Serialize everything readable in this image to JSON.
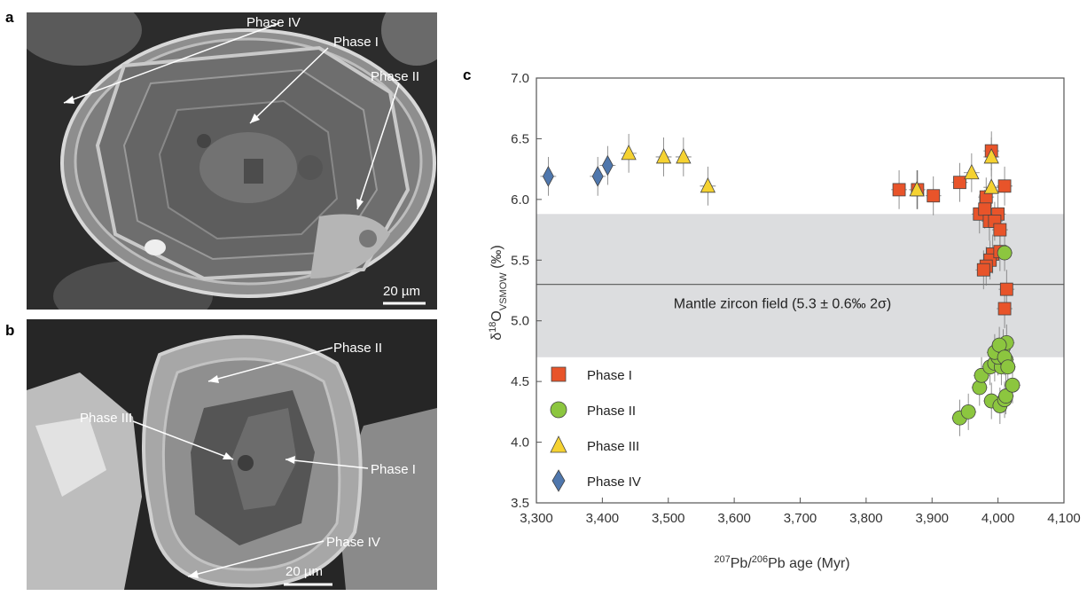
{
  "panels": {
    "a": {
      "letter": "a",
      "labels": {
        "phase_iv": "Phase IV",
        "phase_i": "Phase I",
        "phase_ii": "Phase II"
      },
      "scale": "20 µm"
    },
    "b": {
      "letter": "b",
      "labels": {
        "phase_ii": "Phase II",
        "phase_iii": "Phase III",
        "phase_i": "Phase I",
        "phase_iv": "Phase IV"
      },
      "scale": "20 µm"
    },
    "c": {
      "letter": "c"
    }
  },
  "colors": {
    "phase_i": "#e8542a",
    "phase_ii": "#8cc63f",
    "phase_iii": "#f5d231",
    "phase_iv": "#4f77ad",
    "mantle_band": "#dcdddf",
    "axis": "#555555"
  },
  "chart_data": {
    "type": "scatter",
    "xlabel_sup1": "207",
    "xlabel_mid": "Pb/",
    "xlabel_sup2": "206",
    "xlabel_end": "Pb age (Myr)",
    "ylabel_pre": "δ",
    "ylabel_sup": "18",
    "ylabel_main": "O",
    "ylabel_sub": "VSMOW",
    "ylabel_unit": " (‰)",
    "xlim": [
      3300,
      4100
    ],
    "ylim": [
      3.5,
      7.0
    ],
    "x_ticks": [
      "3,300",
      "3,400",
      "3,500",
      "3,600",
      "3,700",
      "3,800",
      "3,900",
      "4,000",
      "4,100"
    ],
    "y_ticks": [
      "3.5",
      "4.0",
      "4.5",
      "5.0",
      "5.5",
      "6.0",
      "6.5",
      "7.0"
    ],
    "mantle_field": {
      "label": "Mantle zircon field (5.3 ± 0.6‰ 2σ)",
      "center": 5.3,
      "low": 4.7,
      "high": 5.88
    },
    "legend": [
      {
        "name": "Phase I",
        "marker": "square"
      },
      {
        "name": "Phase II",
        "marker": "circle"
      },
      {
        "name": "Phase III",
        "marker": "triangle"
      },
      {
        "name": "Phase IV",
        "marker": "diamond"
      }
    ],
    "series": [
      {
        "name": "Phase I",
        "marker": "square",
        "points": [
          [
            3850,
            6.08
          ],
          [
            3878,
            6.08
          ],
          [
            3902,
            6.03
          ],
          [
            3942,
            6.14
          ],
          [
            3990,
            6.4
          ],
          [
            3982,
            6.02
          ],
          [
            4010,
            6.11
          ],
          [
            3972,
            5.88
          ],
          [
            3980,
            5.92
          ],
          [
            3987,
            5.82
          ],
          [
            4000,
            5.88
          ],
          [
            3995,
            5.82
          ],
          [
            4003,
            5.75
          ],
          [
            3992,
            5.55
          ],
          [
            3988,
            5.5
          ],
          [
            4003,
            5.57
          ],
          [
            3982,
            5.45
          ],
          [
            3978,
            5.42
          ],
          [
            4013,
            5.26
          ],
          [
            4010,
            5.1
          ]
        ]
      },
      {
        "name": "Phase II",
        "marker": "circle",
        "points": [
          [
            4010,
            5.56
          ],
          [
            3942,
            4.2
          ],
          [
            3955,
            4.25
          ],
          [
            3972,
            4.45
          ],
          [
            3975,
            4.55
          ],
          [
            3988,
            4.62
          ],
          [
            3995,
            4.65
          ],
          [
            4005,
            4.62
          ],
          [
            4012,
            4.68
          ],
          [
            4000,
            4.7
          ],
          [
            3995,
            4.74
          ],
          [
            4008,
            4.78
          ],
          [
            4013,
            4.82
          ],
          [
            4002,
            4.8
          ],
          [
            4010,
            4.7
          ],
          [
            3990,
            4.34
          ],
          [
            4003,
            4.3
          ],
          [
            4010,
            4.35
          ],
          [
            4012,
            4.38
          ],
          [
            4022,
            4.47
          ],
          [
            4015,
            4.62
          ]
        ]
      },
      {
        "name": "Phase III",
        "marker": "triangle",
        "points": [
          [
            3440,
            6.38
          ],
          [
            3493,
            6.35
          ],
          [
            3523,
            6.35
          ],
          [
            3560,
            6.11
          ],
          [
            3877,
            6.08
          ],
          [
            3960,
            6.22
          ],
          [
            3990,
            6.35
          ],
          [
            3990,
            6.1
          ]
        ]
      },
      {
        "name": "Phase IV",
        "marker": "diamond",
        "points": [
          [
            3318,
            6.19
          ],
          [
            3393,
            6.19
          ],
          [
            3408,
            6.28
          ]
        ]
      }
    ]
  }
}
